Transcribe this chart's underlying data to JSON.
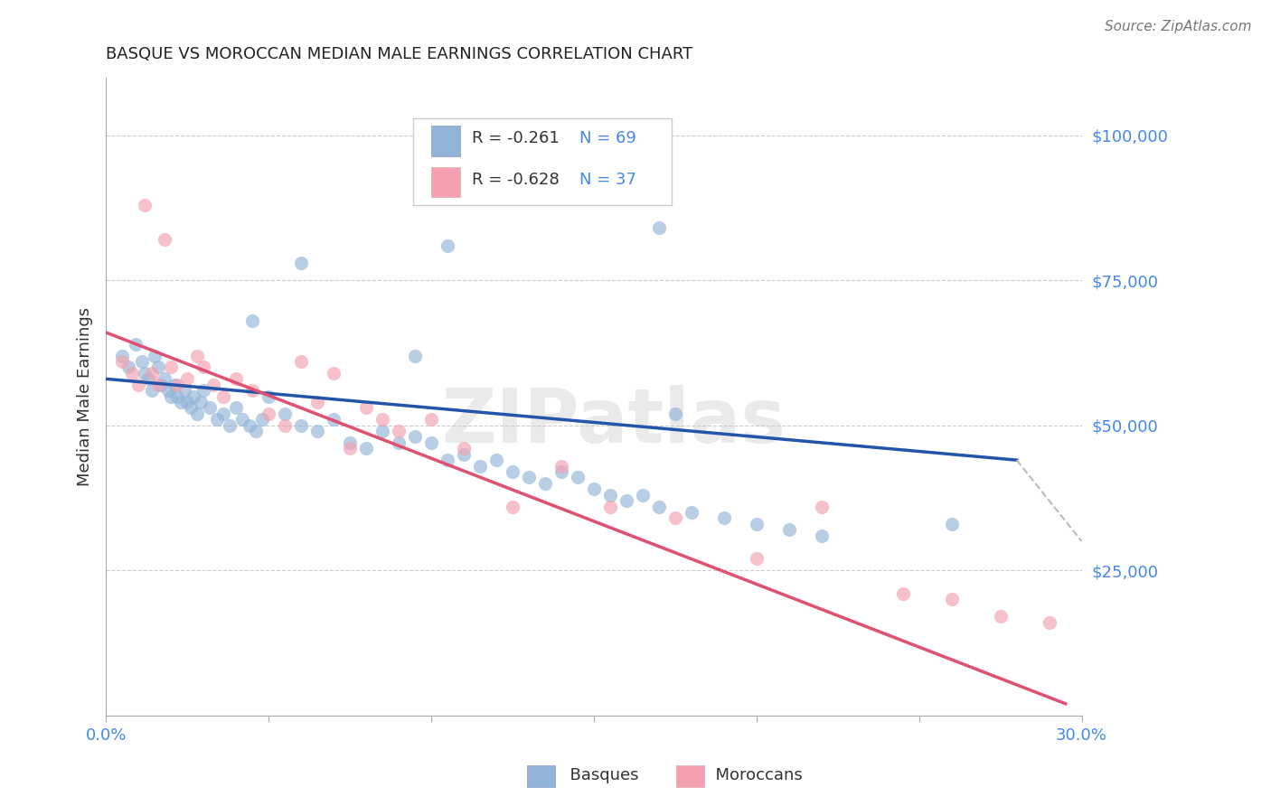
{
  "title": "BASQUE VS MOROCCAN MEDIAN MALE EARNINGS CORRELATION CHART",
  "source_text": "Source: ZipAtlas.com",
  "ylabel": "Median Male Earnings",
  "xlim": [
    0.0,
    0.3
  ],
  "ylim": [
    0,
    110000
  ],
  "yticks": [
    0,
    25000,
    50000,
    75000,
    100000
  ],
  "ytick_labels": [
    "",
    "$25,000",
    "$50,000",
    "$75,000",
    "$100,000"
  ],
  "xticks": [
    0.0,
    0.05,
    0.1,
    0.15,
    0.2,
    0.25,
    0.3
  ],
  "xtick_labels": [
    "0.0%",
    "",
    "",
    "",
    "",
    "",
    "30.0%"
  ],
  "blue_color": "#92B4D8",
  "pink_color": "#F4A0B0",
  "blue_line_color": "#2255AA",
  "pink_line_color": "#E05070",
  "dash_line_color": "#BBBBBB",
  "axis_label_color": "#4488EE",
  "background_color": "#FFFFFF",
  "grid_color": "#CCCCCC",
  "title_color": "#222222",
  "watermark": "ZIPatlas",
  "marker_size": 120,
  "basques_x": [
    0.005,
    0.007,
    0.009,
    0.011,
    0.012,
    0.013,
    0.014,
    0.015,
    0.016,
    0.017,
    0.018,
    0.019,
    0.02,
    0.021,
    0.022,
    0.023,
    0.024,
    0.025,
    0.026,
    0.027,
    0.028,
    0.029,
    0.03,
    0.032,
    0.034,
    0.036,
    0.038,
    0.04,
    0.042,
    0.044,
    0.046,
    0.048,
    0.05,
    0.055,
    0.06,
    0.065,
    0.07,
    0.075,
    0.08,
    0.085,
    0.09,
    0.095,
    0.1,
    0.105,
    0.11,
    0.115,
    0.12,
    0.125,
    0.13,
    0.135,
    0.14,
    0.145,
    0.15,
    0.155,
    0.16,
    0.165,
    0.17,
    0.18,
    0.19,
    0.2,
    0.21,
    0.22,
    0.17,
    0.06,
    0.045,
    0.095,
    0.105,
    0.26,
    0.175
  ],
  "basques_y": [
    62000,
    60000,
    64000,
    61000,
    59000,
    58000,
    56000,
    62000,
    60000,
    57000,
    58000,
    56000,
    55000,
    57000,
    55000,
    54000,
    56000,
    54000,
    53000,
    55000,
    52000,
    54000,
    56000,
    53000,
    51000,
    52000,
    50000,
    53000,
    51000,
    50000,
    49000,
    51000,
    55000,
    52000,
    50000,
    49000,
    51000,
    47000,
    46000,
    49000,
    47000,
    48000,
    47000,
    44000,
    45000,
    43000,
    44000,
    42000,
    41000,
    40000,
    42000,
    41000,
    39000,
    38000,
    37000,
    38000,
    36000,
    35000,
    34000,
    33000,
    32000,
    31000,
    84000,
    78000,
    68000,
    62000,
    81000,
    33000,
    52000
  ],
  "moroccans_x": [
    0.005,
    0.008,
    0.01,
    0.012,
    0.014,
    0.016,
    0.018,
    0.02,
    0.022,
    0.025,
    0.028,
    0.03,
    0.033,
    0.036,
    0.04,
    0.045,
    0.05,
    0.055,
    0.06,
    0.065,
    0.07,
    0.075,
    0.08,
    0.085,
    0.09,
    0.1,
    0.11,
    0.125,
    0.14,
    0.155,
    0.175,
    0.2,
    0.22,
    0.245,
    0.26,
    0.275,
    0.29
  ],
  "moroccans_y": [
    61000,
    59000,
    57000,
    88000,
    59000,
    57000,
    82000,
    60000,
    57000,
    58000,
    62000,
    60000,
    57000,
    55000,
    58000,
    56000,
    52000,
    50000,
    61000,
    54000,
    59000,
    46000,
    53000,
    51000,
    49000,
    51000,
    46000,
    36000,
    43000,
    36000,
    34000,
    27000,
    36000,
    21000,
    20000,
    17000,
    16000
  ],
  "blue_line_x": [
    0.0,
    0.28
  ],
  "blue_line_y": [
    58000,
    44000
  ],
  "pink_line_x": [
    0.0,
    0.295
  ],
  "pink_line_y": [
    66000,
    2000
  ],
  "dash_line_x": [
    0.28,
    0.3
  ],
  "dash_line_y": [
    44000,
    30000
  ]
}
